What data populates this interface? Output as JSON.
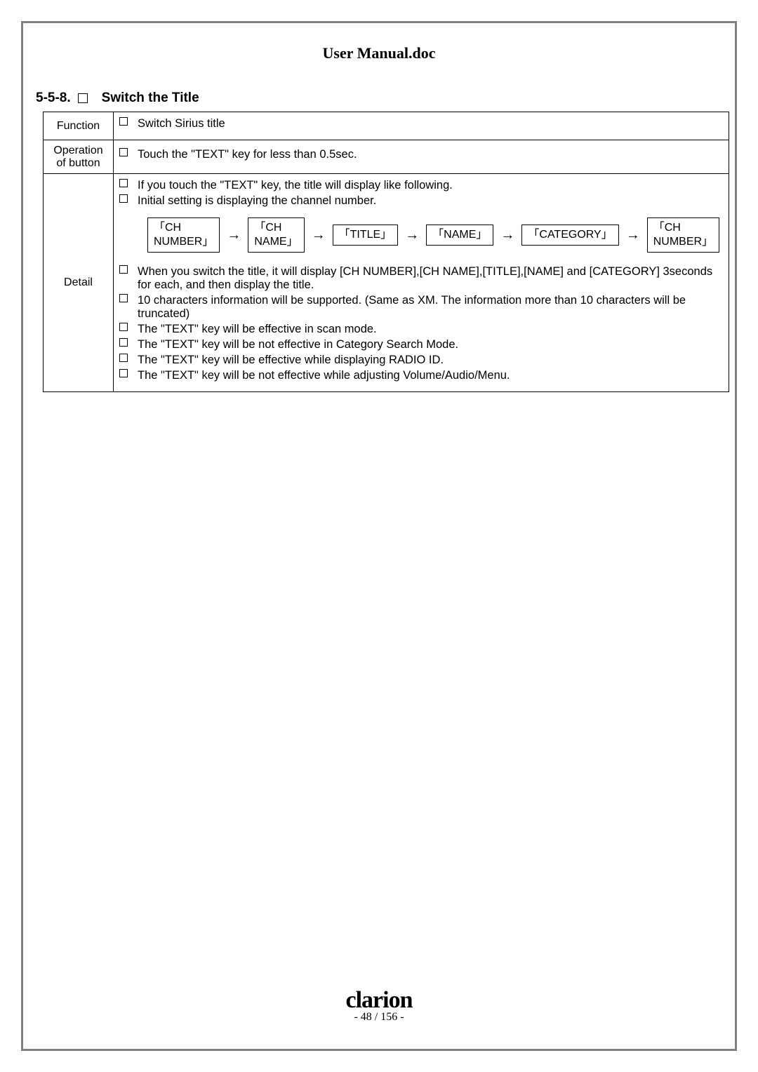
{
  "doc_title": "User Manual.doc",
  "section_number": "5-5-8.",
  "section_title": "Switch the Title",
  "rows": {
    "function": {
      "label": "Function",
      "text": "Switch Sirius title"
    },
    "operation": {
      "label": "Operation of button",
      "text": "Touch the \"TEXT\" key   for less than 0.5sec."
    },
    "detail": {
      "label": "Detail",
      "items_top": [
        "If you touch the \"TEXT\" key, the title will display like following.",
        "Initial setting is displaying the channel number."
      ],
      "flow": [
        "「CH\nNUMBER」",
        "「CH\nNAME」",
        "「TITLE」",
        "「NAME」",
        "「CATEGORY」",
        "「CH\nNUMBER」"
      ],
      "items_bottom": [
        "When you switch the title, it will display [CH NUMBER],[CH NAME],[TITLE],[NAME] and [CATEGORY] 3seconds for each, and then display the title.",
        "10 characters information will be supported. (Same as XM. The information more than 10 characters will be truncated)",
        "The \"TEXT\" key will be effective in scan mode.",
        "The \"TEXT\" key will be not effective in Category Search Mode.",
        "The \"TEXT\" key will be effective while displaying RADIO ID.",
        "The \"TEXT\" key will be not effective while adjusting Volume/Audio/Menu."
      ]
    }
  },
  "footer": {
    "brand": "clarion",
    "page": "- 48 / 156 -"
  }
}
